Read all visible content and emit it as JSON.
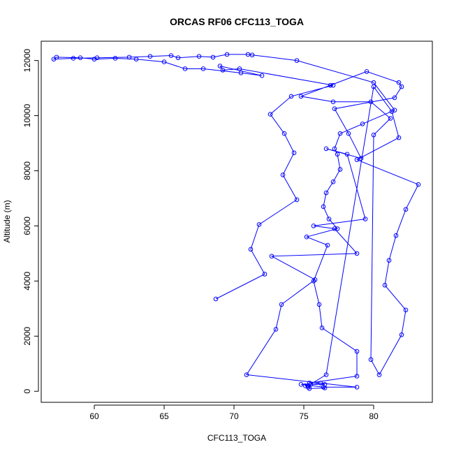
{
  "chart_data": {
    "type": "line",
    "title": "ORCAS RF06 CFC113_TOGA",
    "xlabel": "CFC113_TOGA",
    "ylabel": "Altitude (m)",
    "xlim": [
      56.2,
      84.2
    ],
    "ylim": [
      -400,
      12700
    ],
    "xticks": [
      60,
      65,
      70,
      75,
      80
    ],
    "yticks": [
      0,
      2000,
      4000,
      6000,
      8000,
      10000,
      12000
    ],
    "grid": false,
    "markers": "open-circle",
    "line_color": "#0000ff",
    "series": [
      {
        "x": [
          68.7,
          72.2,
          71.2,
          71.8,
          74.5,
          73.5,
          74.3,
          73.6,
          72.6,
          74.1,
          77.1,
          70.4,
          69.2,
          69.0,
          72.0,
          70.5,
          67.8,
          66.5,
          65.0,
          63.0,
          61.5,
          60.0,
          59.0,
          57.3,
          57.1,
          58.5,
          60.2,
          62.5,
          64.0,
          65.5,
          66.0,
          67.5,
          68.5,
          69.5,
          71.0,
          71.3,
          74.5,
          80.0,
          81.5,
          79.2,
          77.6,
          77.2,
          77.4,
          77.6,
          77.1,
          76.6,
          76.4,
          76.8,
          77.4,
          75.2,
          76.7,
          75.7,
          76.1,
          76.3,
          78.8,
          78.8,
          75.4,
          75.1,
          75.3,
          75.5,
          76.2,
          76.5,
          74.8,
          76.4,
          78.8,
          70.9,
          73.0,
          73.4,
          75.8,
          72.7,
          78.8,
          77.2,
          75.7,
          79.4,
          78.1,
          76.6,
          79.1,
          78.2,
          77.2,
          81.5,
          82.0,
          81.8,
          79.5,
          76.9,
          74.8,
          77.1,
          79.8,
          81.2,
          80.0,
          79.8,
          80.4,
          82.0,
          82.3,
          80.8,
          81.1,
          81.6,
          82.3,
          83.2,
          78.8,
          81.8,
          81.3,
          80.0,
          76.6,
          75.3,
          75.4,
          76.5
        ],
        "y": [
          3350,
          4250,
          5150,
          6050,
          6950,
          7850,
          8650,
          9350,
          10050,
          10700,
          11100,
          11700,
          11650,
          11800,
          11450,
          11550,
          11700,
          11700,
          11950,
          12050,
          12080,
          12050,
          12100,
          12120,
          12050,
          12080,
          12100,
          12120,
          12150,
          12180,
          12100,
          12150,
          12120,
          12220,
          12220,
          12200,
          12000,
          11200,
          10200,
          9700,
          9350,
          8800,
          8600,
          8050,
          7600,
          7200,
          6700,
          6250,
          5900,
          5600,
          5300,
          4000,
          3150,
          2300,
          1450,
          550,
          300,
          200,
          150,
          250,
          300,
          250,
          250,
          150,
          150,
          600,
          2250,
          3150,
          4050,
          4900,
          5000,
          5900,
          6000,
          6250,
          8600,
          8800,
          8450,
          9350,
          10250,
          10650,
          11050,
          11200,
          11600,
          11100,
          10700,
          10500,
          10500,
          9900,
          9300,
          1150,
          600,
          2050,
          2950,
          3850,
          4750,
          5650,
          6600,
          7500,
          8400,
          9200,
          10150,
          11050,
          600,
          200,
          100,
          120
        ]
      }
    ]
  }
}
